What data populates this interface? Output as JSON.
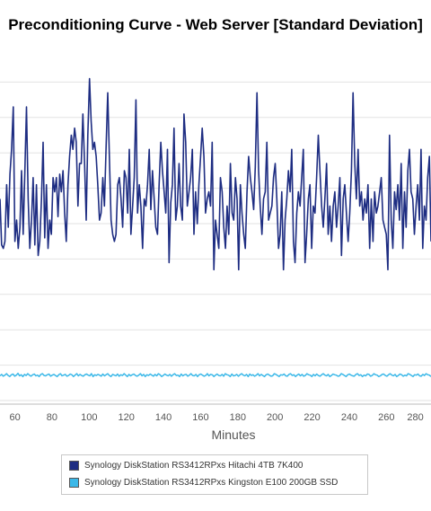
{
  "chart_data": {
    "type": "line",
    "title": "Preconditioning Curve - Web Server [Standard Deviation]",
    "xlabel": "Minutes",
    "ylabel": "",
    "x_ticks": [
      60,
      80,
      100,
      120,
      140,
      160,
      180,
      200,
      220,
      240,
      260,
      280
    ],
    "xlim": [
      52,
      284
    ],
    "ylim": [
      0,
      100
    ],
    "grid": true,
    "legend_position": "bottom",
    "series": [
      {
        "name": "Synology DiskStation RS3412RPxs Hitachi 4TB 7K400",
        "color": "#1e2d82",
        "values": [
          58,
          45,
          44,
          46,
          62,
          50,
          65,
          72,
          84,
          46,
          52,
          44,
          50,
          66,
          48,
          66,
          84,
          58,
          44,
          52,
          64,
          45,
          62,
          42,
          46,
          58,
          74,
          47,
          62,
          44,
          52,
          48,
          64,
          60,
          64,
          53,
          65,
          60,
          66,
          54,
          46,
          62,
          70,
          76,
          72,
          78,
          74,
          56,
          68,
          68,
          82,
          68,
          52,
          76,
          92,
          80,
          72,
          74,
          70,
          62,
          52,
          54,
          64,
          56,
          73,
          88,
          70,
          52,
          48,
          46,
          48,
          62,
          64,
          58,
          50,
          66,
          64,
          54,
          72,
          48,
          56,
          64,
          86,
          54,
          62,
          56,
          44,
          58,
          56,
          62,
          72,
          55,
          66,
          58,
          50,
          48,
          62,
          74,
          66,
          60,
          54,
          72,
          40,
          57,
          62,
          78,
          52,
          56,
          68,
          56,
          52,
          82,
          74,
          56,
          60,
          64,
          72,
          48,
          60,
          51,
          62,
          70,
          78,
          70,
          54,
          58,
          60,
          56,
          74,
          38,
          52,
          48,
          44,
          64,
          60,
          50,
          44,
          56,
          48,
          68,
          54,
          52,
          64,
          58,
          38,
          62,
          54,
          48,
          44,
          60,
          70,
          64,
          60,
          55,
          67,
          88,
          66,
          56,
          48,
          58,
          60,
          74,
          52,
          54,
          56,
          64,
          68,
          58,
          44,
          48,
          60,
          38,
          52,
          58,
          66,
          60,
          72,
          46,
          40,
          54,
          60,
          56,
          64,
          72,
          40,
          48,
          58,
          62,
          44,
          56,
          54,
          64,
          76,
          66,
          56,
          50,
          58,
          68,
          48,
          56,
          46,
          56,
          60,
          50,
          56,
          64,
          42,
          58,
          62,
          54,
          46,
          54,
          66,
          88,
          68,
          58,
          72,
          56,
          60,
          52,
          58,
          54,
          62,
          44,
          58,
          46,
          60,
          54,
          56,
          60,
          64,
          52,
          50,
          48,
          38,
          76,
          52,
          44,
          60,
          55,
          62,
          52,
          68,
          44,
          60,
          50,
          66,
          72,
          60,
          58,
          48,
          56,
          62,
          52,
          72,
          44,
          56,
          52,
          64,
          70,
          46
        ]
      },
      {
        "name": "Synology DiskStation RS3412RPxs Kingston E100 200GB SSD",
        "color": "#3bb8e8",
        "values": [
          8.0,
          8.4,
          7.9,
          8.2,
          8.6,
          8.1,
          7.8,
          8.3,
          8.5,
          7.9,
          8.2,
          8.7,
          8.0,
          8.3,
          7.8,
          8.4,
          8.1,
          8.6,
          8.2,
          7.9,
          8.3,
          8.5,
          8.0,
          8.2,
          7.8,
          8.4,
          8.6,
          8.1,
          8.0,
          8.3,
          8.5,
          7.9,
          8.2,
          8.4,
          8.1,
          7.8,
          8.3,
          8.6,
          8.0,
          8.2,
          8.4,
          7.9,
          8.1,
          8.5,
          8.3,
          7.8,
          8.2,
          8.6,
          8.0,
          8.4,
          8.1,
          7.9,
          8.3,
          8.5,
          8.2,
          8.0,
          8.6,
          7.8,
          8.3,
          8.1,
          8.4,
          8.2,
          7.9,
          8.5,
          8.0,
          8.3,
          8.6,
          8.1,
          7.8,
          8.4,
          8.2,
          8.0,
          8.5,
          7.9,
          8.3,
          8.1,
          8.6,
          8.2,
          7.8,
          8.4,
          8.0,
          8.3,
          8.5,
          8.1,
          7.9,
          8.2,
          8.6,
          8.0,
          8.4,
          7.8,
          8.3,
          8.1,
          8.5,
          8.2,
          7.9,
          8.4,
          8.0,
          8.6,
          8.3,
          7.8,
          8.1,
          8.5,
          8.2,
          8.0,
          8.4,
          7.9,
          8.3,
          8.6,
          8.1,
          8.2,
          7.8,
          8.5,
          8.0,
          8.3,
          8.4,
          7.9,
          8.2,
          8.6,
          8.1,
          8.0,
          8.4,
          7.8,
          8.3,
          8.5,
          8.2,
          7.9,
          8.1,
          8.6,
          8.0,
          8.4,
          8.3,
          7.8,
          8.2,
          8.5,
          8.1,
          8.0,
          8.4,
          7.9,
          8.6,
          8.3,
          8.2,
          7.8,
          8.5,
          8.0,
          8.1,
          8.4,
          7.9,
          8.3,
          8.6,
          8.2,
          8.0,
          8.4,
          7.8,
          8.5,
          8.1,
          8.3,
          7.9,
          8.2,
          8.6,
          8.0,
          8.4,
          8.1,
          7.8,
          8.3,
          8.5,
          8.2,
          7.9,
          8.0,
          8.6,
          8.4,
          8.1,
          7.8,
          8.3,
          8.2,
          8.5,
          8.0,
          7.9,
          8.4,
          8.6,
          8.1,
          8.3,
          7.8,
          8.2,
          8.5,
          8.0,
          8.4,
          7.9,
          8.1,
          8.6,
          8.3,
          8.2,
          7.8,
          8.4,
          8.0,
          8.5,
          8.1,
          7.9,
          8.3,
          8.6,
          8.2,
          8.0,
          8.4,
          7.8,
          8.1,
          8.5,
          8.3,
          8.2,
          7.9,
          8.0,
          8.6,
          8.4,
          8.1,
          7.8,
          8.3,
          8.5,
          8.2,
          8.0,
          7.9,
          8.4,
          8.6,
          8.1,
          8.3,
          7.8,
          8.2,
          8.0,
          8.5,
          8.4,
          7.9,
          8.1,
          8.6,
          8.3,
          8.2,
          7.8,
          8.0,
          8.4,
          8.5,
          8.1,
          7.9,
          8.3,
          8.6,
          8.2,
          8.0,
          8.4,
          7.8,
          8.1,
          8.5,
          8.3,
          7.9,
          8.2,
          8.0,
          8.6,
          8.4,
          8.1,
          7.8,
          8.3,
          8.2,
          8.5,
          8.0,
          7.9,
          8.4,
          8.1,
          8.6,
          8.3,
          8.2,
          7.8
        ]
      }
    ]
  }
}
